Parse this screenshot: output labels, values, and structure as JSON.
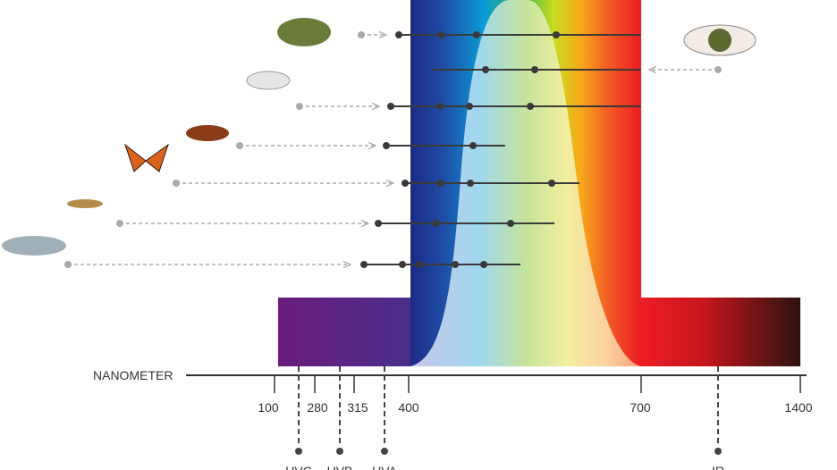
{
  "axis": {
    "title": "NANOMETER",
    "ticks": [
      "100",
      "280",
      "315",
      "400",
      "700",
      "1400"
    ]
  },
  "bands": [
    "UVC",
    "UVB",
    "UVA",
    "IR"
  ]
}
